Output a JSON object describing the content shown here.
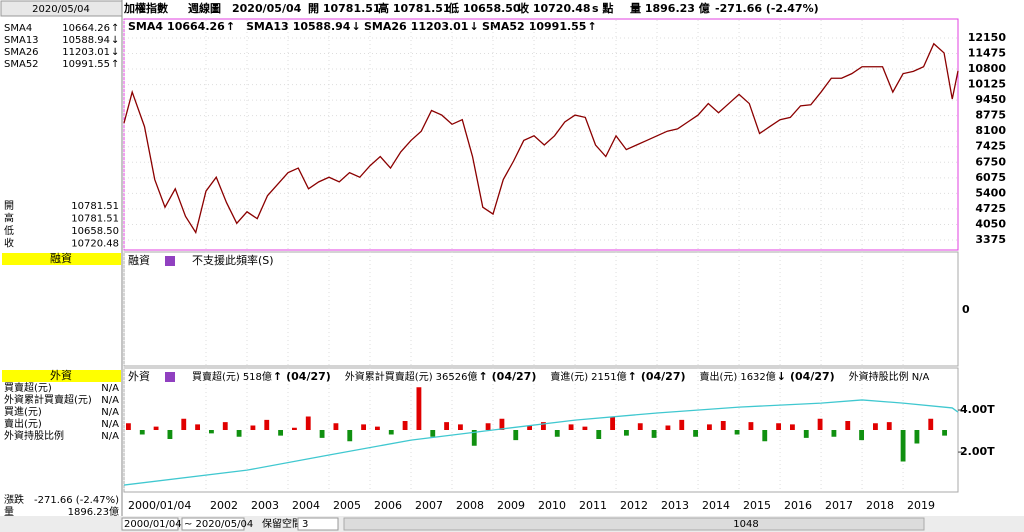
{
  "header": {
    "date": "2020/05/04",
    "items": [
      "加權指數",
      "週線圖",
      "2020/05/04",
      "開 10781.51",
      "高 10781.51",
      "低 10658.50",
      "收 10720.48",
      "s 點",
      "量 1896.23 億",
      "-271.66 (-2.47%)"
    ]
  },
  "sma": [
    {
      "name": "SMA4",
      "value": "10664.26",
      "arrow": "↑",
      "color": "#8b0000",
      "arrow_color": "#e00000"
    },
    {
      "name": "SMA13",
      "value": "10588.94",
      "arrow": "↓",
      "color": "#20b8c0",
      "arrow_color": "#008000"
    },
    {
      "name": "SMA26",
      "value": "11203.01",
      "arrow": "↓",
      "color": "#e0208a",
      "arrow_color": "#008000"
    },
    {
      "name": "SMA52",
      "value": "10991.55",
      "arrow": "↑",
      "color": "#f07030",
      "arrow_color": "#e00000"
    }
  ],
  "ohlc": [
    [
      "開",
      "10781.51"
    ],
    [
      "高",
      "10781.51"
    ],
    [
      "低",
      "10658.50"
    ],
    [
      "收",
      "10720.48"
    ]
  ],
  "bottom_left": [
    [
      "漲跌",
      "-271.66 (-2.47%)"
    ],
    [
      "量",
      "1896.23億"
    ]
  ],
  "chart_data": {
    "type": "line",
    "color": "#8b0000",
    "x": [
      2000.0,
      2000.2,
      2000.5,
      2000.75,
      2001.0,
      2001.25,
      2001.5,
      2001.75,
      2002.0,
      2002.25,
      2002.5,
      2002.75,
      2003.0,
      2003.25,
      2003.5,
      2003.75,
      2004.0,
      2004.25,
      2004.5,
      2004.75,
      2005.0,
      2005.25,
      2005.5,
      2005.75,
      2006.0,
      2006.25,
      2006.5,
      2006.75,
      2007.0,
      2007.25,
      2007.5,
      2007.75,
      2008.0,
      2008.25,
      2008.5,
      2008.75,
      2009.0,
      2009.25,
      2009.5,
      2009.75,
      2010.0,
      2010.25,
      2010.5,
      2010.75,
      2011.0,
      2011.25,
      2011.5,
      2011.75,
      2012.0,
      2012.25,
      2012.5,
      2012.75,
      2013.0,
      2013.25,
      2013.5,
      2013.75,
      2014.0,
      2014.25,
      2014.5,
      2014.75,
      2015.0,
      2015.25,
      2015.5,
      2015.75,
      2016.0,
      2016.25,
      2016.5,
      2016.75,
      2017.0,
      2017.25,
      2017.5,
      2017.75,
      2018.0,
      2018.25,
      2018.5,
      2018.75,
      2019.0,
      2019.25,
      2019.5,
      2019.75,
      2020.0,
      2020.2,
      2020.34
    ],
    "values": [
      8450,
      9800,
      8300,
      6000,
      4800,
      5600,
      4400,
      3700,
      5500,
      6100,
      5000,
      4100,
      4600,
      4300,
      5300,
      5800,
      6300,
      6500,
      5600,
      5900,
      6100,
      5900,
      6300,
      6100,
      6600,
      7000,
      6500,
      7200,
      7700,
      8100,
      9000,
      8800,
      8400,
      8600,
      7000,
      4800,
      4500,
      6000,
      6800,
      7700,
      7900,
      7500,
      7900,
      8500,
      8800,
      8700,
      7500,
      7000,
      7900,
      7300,
      7500,
      7700,
      7900,
      8100,
      8200,
      8500,
      8800,
      9300,
      8900,
      9300,
      9700,
      9300,
      8000,
      8300,
      8600,
      8700,
      9200,
      9250,
      9800,
      10400,
      10400,
      10600,
      10900,
      10900,
      10900,
      9800,
      10600,
      10700,
      10900,
      11900,
      11500,
      9500,
      10720.48
    ],
    "xlim": [
      2000.0,
      2020.34
    ],
    "xticks": [
      {
        "value": 2000,
        "label": "2000/01/04"
      },
      2002,
      2003,
      2004,
      2005,
      2006,
      2007,
      2008,
      2009,
      2010,
      2011,
      2012,
      2013,
      2014,
      2015,
      2016,
      2017,
      2018,
      2019
    ],
    "ylim": [
      2940,
      12930
    ],
    "yticks": [
      3375,
      4050,
      4725,
      5400,
      6075,
      6750,
      7425,
      8100,
      8775,
      9450,
      10125,
      10800,
      11475,
      12150
    ],
    "grid": true
  },
  "margin": {
    "title": "融資",
    "label": "融資",
    "note": "不支援此頻率(S)",
    "yticks": [
      0
    ]
  },
  "foreign": {
    "title": "外資",
    "label": "外資",
    "legend": [
      {
        "name": "買賣超(元)",
        "value": "518億",
        "arrow": "↑",
        "date": "(04/27)",
        "color": "#f06090",
        "arrow_color": "#e00000"
      },
      {
        "name": "外資累計買賣超(元)",
        "value": "36526億",
        "arrow": "↑",
        "date": "(04/27)",
        "color": "#40c8d0",
        "arrow_color": "#e00000"
      },
      {
        "name": "賣進(元)",
        "value": "2151億",
        "arrow": "↑",
        "date": "(04/27)",
        "color": "#f0a040",
        "arrow_color": "#e00000"
      },
      {
        "name": "賣出(元)",
        "value": "1632億",
        "arrow": "↓",
        "date": "(04/27)",
        "color": "#3090d0",
        "arrow_color": "#008000"
      },
      {
        "name": "外資持股比例",
        "value": "N/A",
        "color": "#80b020"
      }
    ],
    "side": [
      {
        "name": "買賣超(元)",
        "value": "N/A",
        "color": "#e00000"
      },
      {
        "name": "外資累計買賣超(元)",
        "value": "N/A",
        "color": "#20b8c0"
      },
      {
        "name": "買進(元)",
        "value": "N/A",
        "color": "#f0a040"
      },
      {
        "name": "賣出(元)",
        "value": "N/A",
        "color": "#2080d0"
      },
      {
        "name": "外資持股比例",
        "value": "N/A",
        "color": "#80b020"
      }
    ],
    "cumulative": {
      "x": [
        2000,
        2003,
        2005,
        2007,
        2009,
        2011,
        2013,
        2015,
        2017,
        2018,
        2019,
        2020.2,
        2020.34
      ],
      "values": [
        0.43,
        1.14,
        1.86,
        2.57,
        3.05,
        3.52,
        3.86,
        4.14,
        4.33,
        4.48,
        4.33,
        4.1,
        3.9
      ],
      "color": "#40c8d0",
      "ylim": [
        0.1,
        5.81
      ],
      "yticks": [
        {
          "value": 4,
          "label": "4.00T"
        },
        {
          "value": 2,
          "label": "2.00T"
        }
      ]
    },
    "net_buy": {
      "values": [
        300,
        -200,
        150,
        -400,
        500,
        250,
        -150,
        350,
        -300,
        200,
        450,
        -250,
        100,
        600,
        -350,
        300,
        -500,
        250,
        150,
        -200,
        400,
        1900,
        -300,
        350,
        250,
        -700,
        300,
        500,
        -450,
        200,
        350,
        -300,
        250,
        150,
        -400,
        600,
        -250,
        300,
        -350,
        200,
        450,
        -300,
        250,
        400,
        -200,
        350,
        -500,
        300,
        250,
        -350,
        500,
        -300,
        400,
        -450,
        300,
        350,
        -1400,
        -600,
        500,
        -250
      ],
      "ylim": [
        -2000,
        2000
      ],
      "up_color": "#e00000",
      "down_color": "#109010"
    }
  },
  "footer": {
    "start": "2000/01/04",
    "end": "~ 2020/05/04",
    "reserve": "保留空間",
    "reserve_value": "3",
    "count": "1048"
  }
}
